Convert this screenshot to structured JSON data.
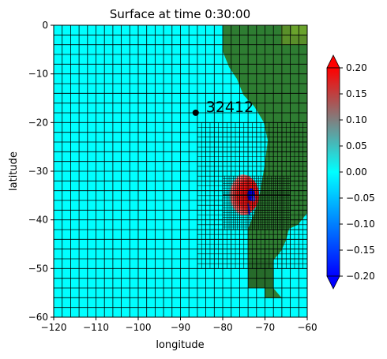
{
  "chart_data": {
    "type": "heatmap",
    "title": "Surface at time 0:30:00",
    "xlabel": "longitude",
    "ylabel": "latitude",
    "xlim": [
      -120,
      -60
    ],
    "ylim": [
      -60,
      0
    ],
    "x_ticks": [
      -120,
      -110,
      -100,
      -90,
      -80,
      -70,
      -60
    ],
    "y_ticks": [
      0,
      -10,
      -20,
      -30,
      -40,
      -50,
      -60
    ],
    "x_tick_labels": [
      "−120",
      "−110",
      "−100",
      "−90",
      "−80",
      "−70",
      "−60"
    ],
    "y_tick_labels": [
      "0",
      "−10",
      "−20",
      "−30",
      "−40",
      "−50",
      "−60"
    ],
    "colorbar": {
      "min": -0.2,
      "max": 0.2,
      "extend": "both",
      "ticks": [
        0.2,
        0.15,
        0.1,
        0.05,
        0.0,
        -0.05,
        -0.1,
        -0.15,
        -0.2
      ],
      "tick_labels": [
        "0.20",
        "0.15",
        "0.10",
        "0.05",
        "0.00",
        "−0.05",
        "−0.10",
        "−0.15",
        "−0.20"
      ],
      "colors": [
        "#0000ff",
        "#00ffff",
        "#ff0000"
      ]
    },
    "gauge": {
      "label": "32412",
      "lon": -86.4,
      "lat": -17.98
    },
    "colors": {
      "ocean": "#00ffff",
      "land": "#2e7d32",
      "grid": "#000000"
    }
  }
}
